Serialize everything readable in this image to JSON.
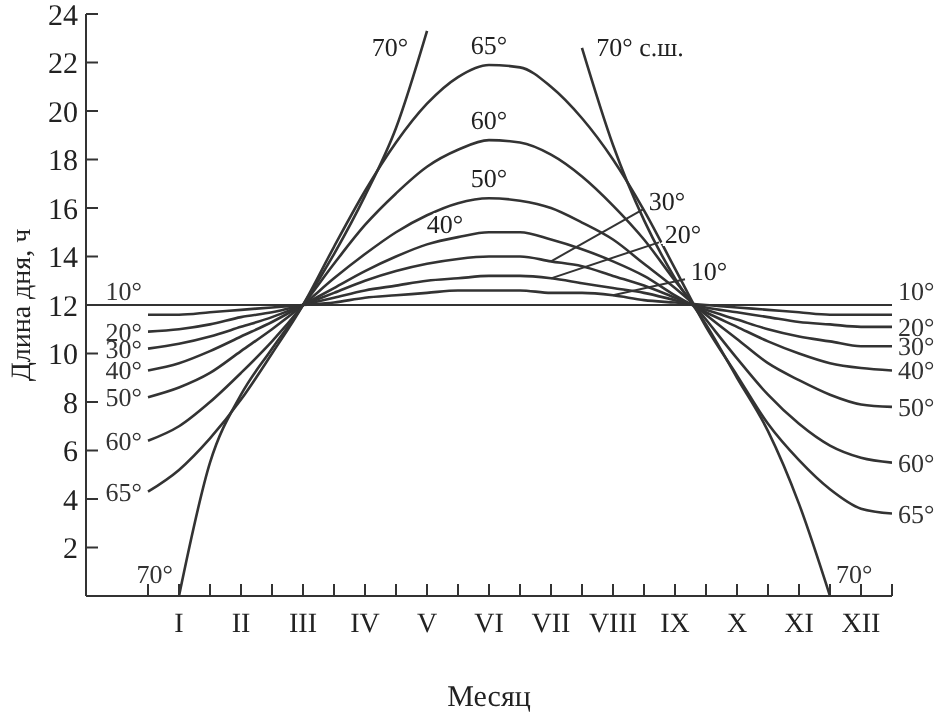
{
  "chart_data": {
    "type": "line",
    "xlabel": "Месяц",
    "ylabel": "Длина дня, ч",
    "categories": [
      null,
      "I",
      null,
      "II",
      null,
      "III",
      null,
      "IV",
      null,
      "V",
      null,
      "VI",
      null,
      "VII",
      null,
      "VIII",
      null,
      "IX",
      null,
      "X",
      null,
      "XI",
      null,
      "XII",
      null
    ],
    "ylim": [
      0,
      24
    ],
    "yticks": [
      2,
      4,
      6,
      8,
      10,
      12,
      14,
      16,
      18,
      20,
      22,
      24
    ],
    "grid": false,
    "ref_lines": [
      {
        "axis": "y",
        "value": 12,
        "color": "#333333"
      }
    ],
    "series": [
      {
        "name": "10°",
        "color": "#333333",
        "values": [
          11.6,
          11.6,
          11.7,
          11.8,
          11.9,
          12,
          12.1,
          12.3,
          12.4,
          12.5,
          12.6,
          12.6,
          12.6,
          12.5,
          12.5,
          12.4,
          12.2,
          12.1,
          12.0,
          11.9,
          11.8,
          11.7,
          11.6,
          11.6,
          11.6
        ]
      },
      {
        "name": "20°",
        "color": "#333333",
        "values": [
          10.9,
          11.0,
          11.2,
          11.5,
          11.7,
          12,
          12.3,
          12.6,
          12.8,
          13.0,
          13.1,
          13.2,
          13.2,
          13.1,
          12.9,
          12.7,
          12.5,
          12.2,
          11.9,
          11.7,
          11.5,
          11.3,
          11.2,
          11.1,
          11.1
        ]
      },
      {
        "name": "30°",
        "color": "#333333",
        "values": [
          10.2,
          10.4,
          10.7,
          11.1,
          11.5,
          12,
          12.5,
          13.0,
          13.4,
          13.7,
          13.9,
          14.0,
          14.0,
          13.8,
          13.6,
          13.2,
          12.8,
          12.3,
          11.8,
          11.4,
          11.0,
          10.7,
          10.5,
          10.3,
          10.3
        ]
      },
      {
        "name": "40°",
        "color": "#333333",
        "values": [
          9.3,
          9.6,
          10.1,
          10.7,
          11.3,
          12,
          12.7,
          13.4,
          14.0,
          14.5,
          14.8,
          15.0,
          15.0,
          14.7,
          14.3,
          13.8,
          13.2,
          12.4,
          11.7,
          11.1,
          10.5,
          10.0,
          9.6,
          9.4,
          9.3
        ]
      },
      {
        "name": "50°",
        "color": "#333333",
        "values": [
          8.2,
          8.6,
          9.2,
          10.1,
          11.0,
          12,
          13.1,
          14.1,
          15.0,
          15.7,
          16.2,
          16.4,
          16.3,
          16.0,
          15.4,
          14.7,
          13.7,
          12.7,
          11.6,
          10.6,
          9.6,
          8.9,
          8.3,
          7.9,
          7.8
        ]
      },
      {
        "name": "60°",
        "color": "#333333",
        "values": [
          6.4,
          7.0,
          8.0,
          9.2,
          10.5,
          12,
          13.7,
          15.3,
          16.6,
          17.7,
          18.4,
          18.8,
          18.7,
          18.2,
          17.3,
          16.1,
          14.7,
          13.0,
          11.4,
          9.8,
          8.3,
          7.1,
          6.2,
          5.7,
          5.5
        ]
      },
      {
        "name": "65°",
        "color": "#333333",
        "values": [
          4.3,
          5.2,
          6.5,
          8.1,
          10.0,
          12,
          14.4,
          16.7,
          18.7,
          20.3,
          21.4,
          21.9,
          21.8,
          21.0,
          19.7,
          18.0,
          15.9,
          13.5,
          11.1,
          9.1,
          7.1,
          5.6,
          4.4,
          3.6,
          3.4
        ]
      },
      {
        "name": "70°",
        "color": "#333333",
        "values": [
          null,
          0,
          5.5,
          8.3,
          10.2,
          12,
          14.1,
          16.5,
          19.3,
          23.3,
          null,
          null,
          null,
          null,
          22.6,
          18.6,
          15.5,
          13.1,
          11.2,
          9.0,
          6.8,
          3.8,
          0,
          null,
          null
        ]
      }
    ],
    "annotations": [
      "70°",
      "70° с.ш.",
      {
        "text": "65°",
        "x": "VI",
        "y": 21.9
      },
      {
        "text": "60°",
        "x": "VI",
        "y": 18.8
      },
      {
        "text": "50°",
        "x": "VI",
        "y": 16.4
      },
      {
        "text": "40°",
        "x": "VI",
        "y": 15.0
      },
      {
        "text": "30°",
        "x": "VII",
        "y": 13.8
      },
      {
        "text": "20°",
        "x": "VII",
        "y": 13.1
      },
      {
        "text": "10°",
        "x": "VIII",
        "y": 12.4
      }
    ]
  }
}
